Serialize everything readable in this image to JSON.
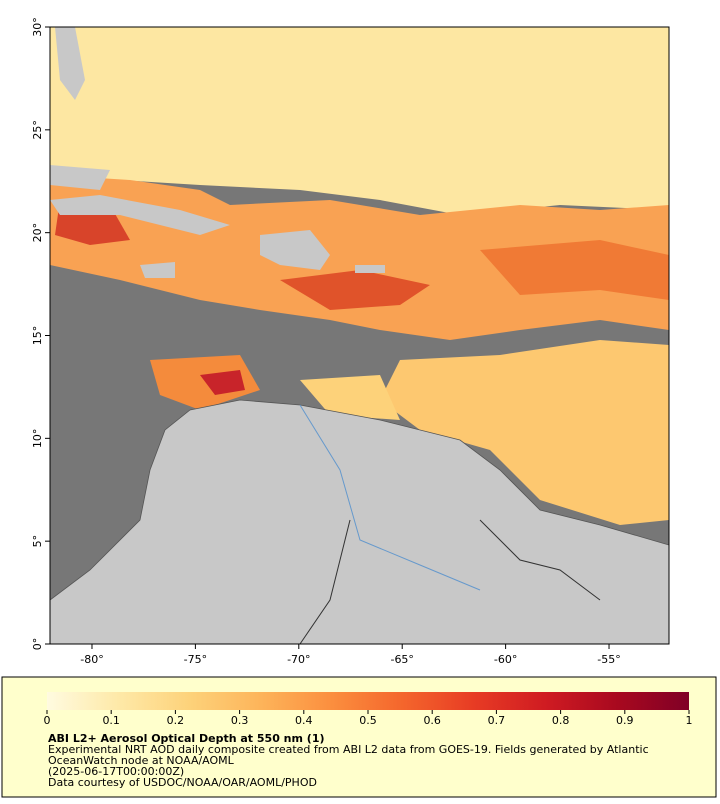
{
  "map": {
    "xlim": [
      -82.03,
      -52.1
    ],
    "ylim": [
      0,
      30
    ],
    "lon_ticks": [
      {
        "value": -80,
        "label": "-80°"
      },
      {
        "value": -75,
        "label": "-75°"
      },
      {
        "value": -70,
        "label": "-70°"
      },
      {
        "value": -65,
        "label": "-65°"
      },
      {
        "value": -60,
        "label": "-60°"
      },
      {
        "value": -55,
        "label": "-55°"
      }
    ],
    "lat_ticks": [
      {
        "value": 0,
        "label": "0°"
      },
      {
        "value": 5,
        "label": "5°"
      },
      {
        "value": 10,
        "label": "10°"
      },
      {
        "value": 15,
        "label": "15°"
      },
      {
        "value": 20,
        "label": "20°"
      },
      {
        "value": 25,
        "label": "25°"
      },
      {
        "value": 30,
        "label": "30°"
      }
    ]
  },
  "colorbar": {
    "lim": [
      0,
      1
    ],
    "ticks": [
      0,
      0.1,
      0.2,
      0.3,
      0.4,
      0.5,
      0.6,
      0.7,
      0.8,
      0.9,
      1
    ],
    "colors": [
      "#fffbe0",
      "#fee9a8",
      "#fdd27a",
      "#fdb45a",
      "#fb8e3e",
      "#f4652c",
      "#e73b24",
      "#cf1b22",
      "#a8091f",
      "#800026"
    ]
  },
  "caption": {
    "title": "ABI L2+ Aerosol Optical Depth at 550 nm (1)",
    "lines": [
      "Experimental NRT AOD daily composite created from ABI L2 data from GOES-19. Fields generated by Atlantic",
      "OceanWatch node at NOAA/AOML",
      "(2025-06-17T00:00:00Z)",
      "Data courtesy of USDOC/NOAA/OAR/AOML/PHOD"
    ]
  }
}
